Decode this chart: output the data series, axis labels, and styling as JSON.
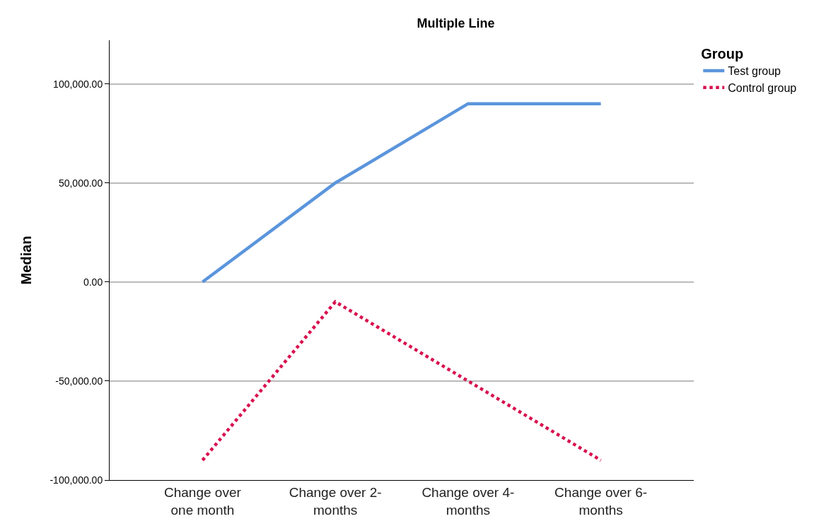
{
  "chart_data": {
    "type": "line",
    "title": "Multiple Line",
    "ylabel": "Median",
    "legend_title": "Group",
    "categories": [
      "Change over one month",
      "Change over 2-months",
      "Change over 4-months",
      "Change over 6-months"
    ],
    "series": [
      {
        "name": "Test group",
        "color": "#5b95dc",
        "line_style": "solid",
        "values": [
          0,
          50000,
          90000,
          90000
        ]
      },
      {
        "name": "Control group",
        "color": "#d8124f",
        "line_style": "dotted",
        "values": [
          -90000,
          -10000,
          -50000,
          -90000
        ]
      }
    ],
    "ylim": [
      -100000,
      122000
    ],
    "yticks": [
      {
        "value": -100000,
        "label": "-100,000.00"
      },
      {
        "value": -50000,
        "label": "-50,000.00"
      },
      {
        "value": 0,
        "label": "0.00"
      },
      {
        "value": 50000,
        "label": "50,000.00"
      },
      {
        "value": 100000,
        "label": "100,000.00"
      }
    ],
    "grid": "y",
    "legend": "top right",
    "marker": "none"
  }
}
